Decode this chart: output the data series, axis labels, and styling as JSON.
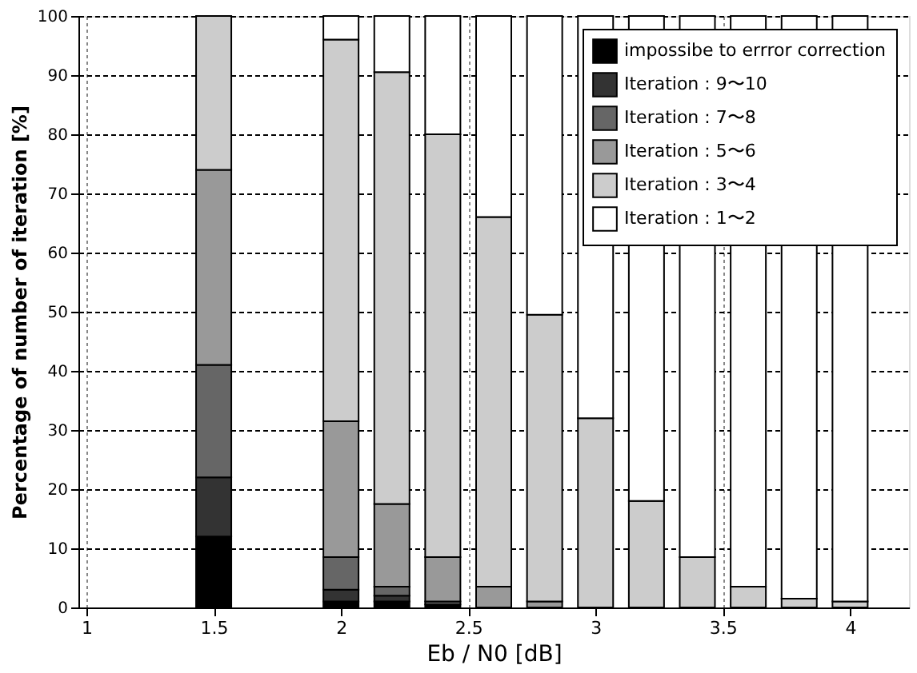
{
  "chart_data": {
    "type": "bar",
    "stacked": true,
    "x": [
      1.5,
      2.0,
      2.2,
      2.4,
      2.6,
      2.8,
      3.0,
      3.2,
      3.4,
      3.6,
      3.8,
      4.0
    ],
    "xlabel": "Eb / N0 [dB]",
    "ylabel": "Percentage of number of iteration [%]",
    "xlim": [
      1,
      4.2
    ],
    "xticks": [
      1,
      1.5,
      2,
      2.5,
      3,
      3.5,
      4
    ],
    "ylim": [
      0,
      100
    ],
    "yticks": [
      0,
      10,
      20,
      30,
      40,
      50,
      60,
      70,
      80,
      90,
      100
    ],
    "grid": true,
    "legend": "top right",
    "series": [
      {
        "name": "impossibe to errror correction",
        "color": "#000000",
        "values": [
          12,
          1,
          1,
          0.5,
          0,
          0,
          0,
          0,
          0,
          0,
          0,
          0
        ]
      },
      {
        "name": "Iteration : 9〜10",
        "color": "#333333",
        "values": [
          10,
          2,
          1,
          0,
          0,
          0,
          0,
          0,
          0,
          0,
          0,
          0
        ]
      },
      {
        "name": "Iteration : 7〜8",
        "color": "#666666",
        "values": [
          19,
          5.5,
          1.5,
          0.5,
          0,
          0,
          0,
          0,
          0,
          0,
          0,
          0
        ]
      },
      {
        "name": "Iteration : 5〜6",
        "color": "#999999",
        "values": [
          33,
          23,
          14,
          7.5,
          3.5,
          1,
          0,
          0,
          0,
          0,
          0,
          0
        ]
      },
      {
        "name": "Iteration : 3〜4",
        "color": "#cccccc",
        "values": [
          26,
          64.5,
          73,
          71.5,
          62.5,
          48.5,
          32,
          18,
          8.5,
          3.5,
          1.5,
          1
        ]
      },
      {
        "name": "Iteration : 1〜2",
        "color": "#ffffff",
        "values": [
          0,
          4,
          9.5,
          20,
          34,
          50.5,
          68,
          82,
          91.5,
          96.5,
          98.5,
          99
        ]
      }
    ]
  }
}
